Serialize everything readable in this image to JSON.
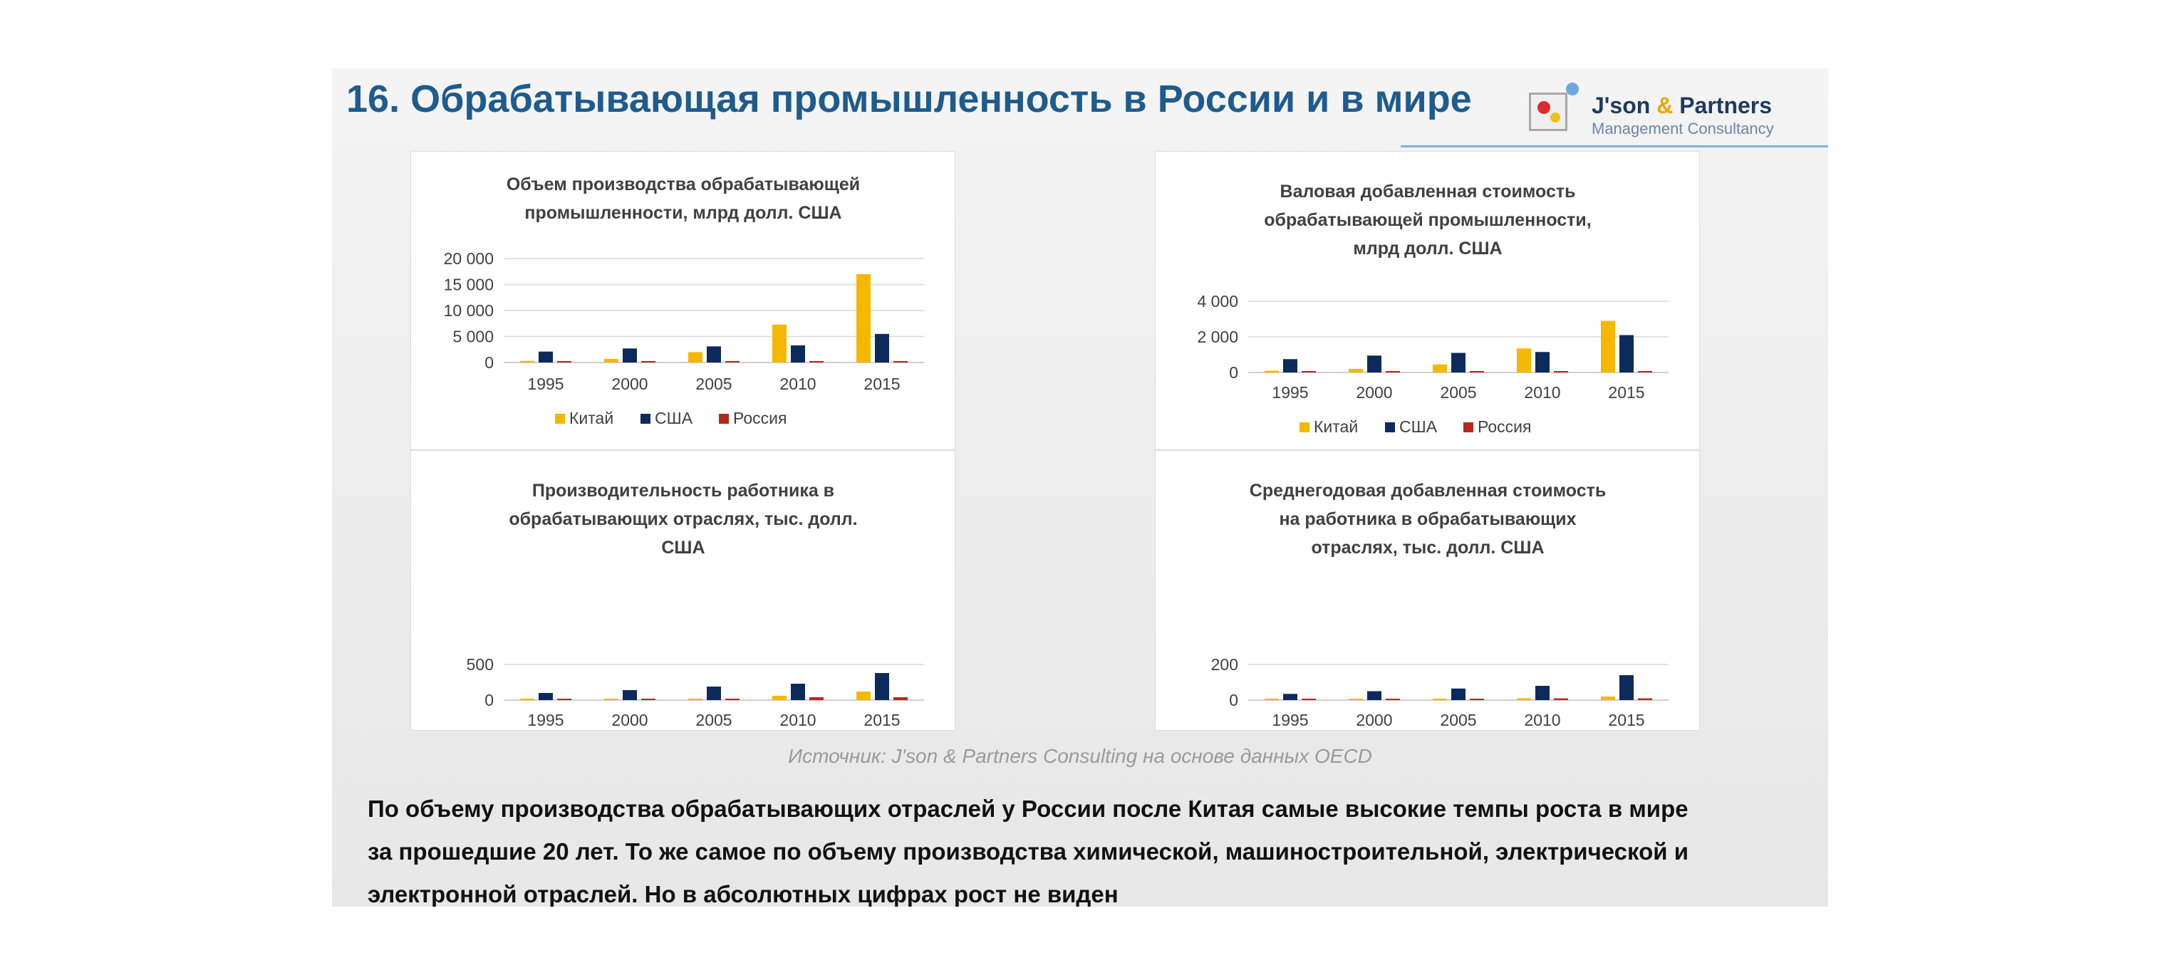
{
  "title": "16. Обрабатывающая промышленность в России и в мире",
  "logo": {
    "name_part1": "J'son ",
    "name_amp": "&",
    "name_part2": " Partners",
    "subtitle": "Management Consultancy"
  },
  "colors": {
    "china": "#f5b800",
    "usa": "#0d2a5c",
    "russia": "#b5281e"
  },
  "chart_data": [
    {
      "type": "bar",
      "title_lines": [
        "Объем производства обрабатывающей",
        "промышленности, млрд долл. США"
      ],
      "categories": [
        "1995",
        "2000",
        "2005",
        "2010",
        "2015"
      ],
      "series": [
        {
          "name": "Китай",
          "values": [
            300,
            700,
            2000,
            7300,
            17000
          ]
        },
        {
          "name": "США",
          "values": [
            2100,
            2700,
            3100,
            3300,
            5500
          ]
        },
        {
          "name": "Россия",
          "values": [
            50,
            60,
            150,
            200,
            200
          ]
        }
      ],
      "ylim": [
        0,
        20000
      ],
      "yticks": [
        0,
        5000,
        10000,
        15000,
        20000
      ],
      "ytick_labels": [
        "0",
        "5 000",
        "10 000",
        "15 000",
        "20 000"
      ]
    },
    {
      "type": "bar",
      "title_lines": [
        "Валовая добавленная стоимость",
        "обрабатывающей промышленности,",
        "млрд долл. США"
      ],
      "categories": [
        "1995",
        "2000",
        "2005",
        "2010",
        "2015"
      ],
      "series": [
        {
          "name": "Китай",
          "values": [
            100,
            200,
            450,
            1350,
            2900
          ]
        },
        {
          "name": "США",
          "values": [
            750,
            950,
            1100,
            1150,
            2100
          ]
        },
        {
          "name": "Россия",
          "values": [
            10,
            15,
            40,
            60,
            50
          ]
        }
      ],
      "ylim": [
        0,
        4000
      ],
      "yticks": [
        0,
        2000,
        4000
      ],
      "ytick_labels": [
        "0",
        "2 000",
        "4 000"
      ]
    },
    {
      "type": "bar",
      "title_lines": [
        "Производительность работника в",
        "обрабатывающих отраслях, тыс. долл.",
        "США"
      ],
      "categories": [
        "1995",
        "2000",
        "2005",
        "2010",
        "2015"
      ],
      "series": [
        {
          "name": "Китай",
          "values": [
            5,
            10,
            20,
            60,
            120
          ]
        },
        {
          "name": "США",
          "values": [
            100,
            140,
            190,
            230,
            380
          ]
        },
        {
          "name": "Россия",
          "values": [
            5,
            10,
            20,
            40,
            40
          ]
        }
      ],
      "ylim": [
        0,
        500
      ],
      "yticks": [
        0,
        500
      ],
      "ytick_labels": [
        "0",
        "500"
      ]
    },
    {
      "type": "bar",
      "title_lines": [
        "Среднегодовая добавленная стоимость",
        "на работника в обрабатывающих",
        "отраслях, тыс. долл. США"
      ],
      "categories": [
        "1995",
        "2000",
        "2005",
        "2010",
        "2015"
      ],
      "series": [
        {
          "name": "Китай",
          "values": [
            1,
            3,
            5,
            10,
            20
          ]
        },
        {
          "name": "США",
          "values": [
            35,
            50,
            65,
            80,
            140
          ]
        },
        {
          "name": "Россия",
          "values": [
            1,
            2,
            5,
            10,
            10
          ]
        }
      ],
      "ylim": [
        0,
        200
      ],
      "yticks": [
        0,
        200
      ],
      "ytick_labels": [
        "0",
        "200"
      ]
    }
  ],
  "source": "Источник: J'son & Partners Consulting на основе данных OECD",
  "summary_lines": [
    "По объему производства обрабатывающих отраслей у России после Китая самые высокие темпы роста в мире",
    "за прошедшие 20 лет. То же самое по объему производства химической, машиностроительной, электрической и",
    "электронной отраслей. Но в абсолютных цифрах рост не виден"
  ]
}
